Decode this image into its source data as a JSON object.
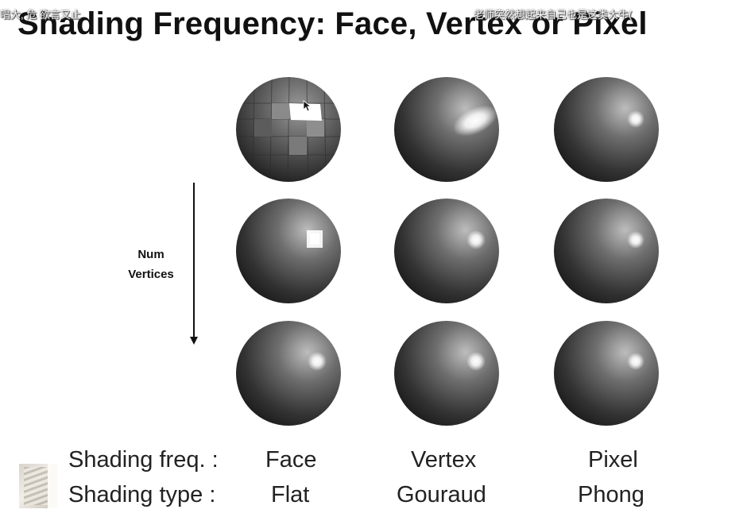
{
  "slide": {
    "title": "Shading Frequency: Face, Vertex or Pixel",
    "axis_label_line1": "Num",
    "axis_label_line2": "Vertices",
    "row_labels": {
      "frequency": "Shading freq. :",
      "type": "Shading type :"
    },
    "columns": [
      {
        "frequency": "Face",
        "type": "Flat"
      },
      {
        "frequency": "Vertex",
        "type": "Gouraud"
      },
      {
        "frequency": "Pixel",
        "type": "Phong"
      }
    ]
  },
  "overlay": {
    "danmaku_left": "唱大, 危   欲言又止",
    "danmaku_right": "老师突然想起来自己也是这类大牛("
  },
  "icons": {
    "cursor": "mouse-pointer-icon",
    "presenter_thumbnail": "presenter-video-thumbnail"
  },
  "colors": {
    "sphere_base": "#4a4a4a",
    "sphere_highlight": "#ffffff",
    "text": "#111111"
  }
}
